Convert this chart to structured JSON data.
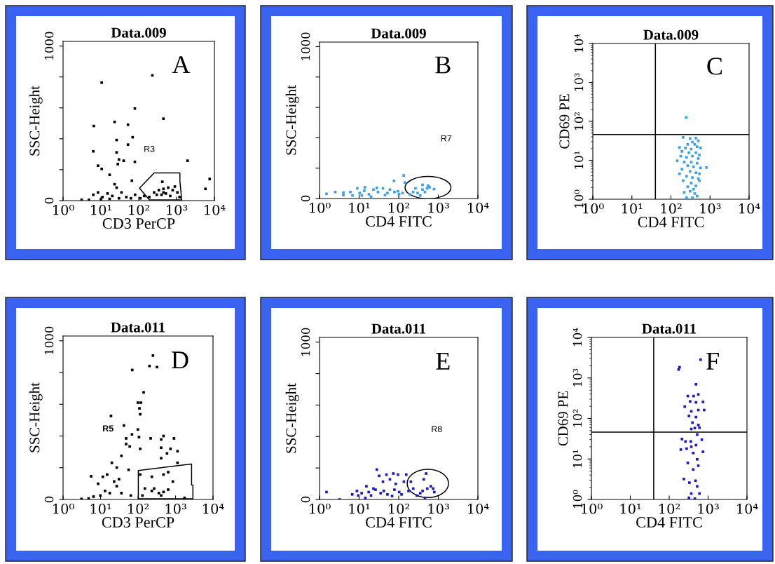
{
  "chart_data": [
    {
      "type": "scatter",
      "title": "Data.009",
      "xlabel": "CD3 PerCP",
      "ylabel": "SSC-Height",
      "log": "x",
      "marker": "square",
      "grid": false,
      "legend": false,
      "xlim": [
        1,
        10000
      ],
      "ylim": [
        0,
        1030
      ],
      "xticks": [
        {
          "value": 1,
          "label": "10⁰"
        },
        {
          "value": 10,
          "label": "10¹"
        },
        {
          "value": 100,
          "label": "10²"
        },
        {
          "value": 1000,
          "label": "10³"
        },
        {
          "value": 10000,
          "label": "10⁴"
        }
      ],
      "yticks": [
        0,
        {
          "value": 200,
          "label": null
        },
        {
          "value": 400,
          "label": null
        },
        {
          "value": 600,
          "label": null
        },
        {
          "value": 800,
          "label": null
        },
        1000
      ],
      "series": [
        {
          "color": "#000000",
          "x": [
            10.5,
            229,
            79,
            450,
            6.5,
            23,
            52,
            69,
            52,
            6.3,
            26,
            26,
            30,
            40,
            28,
            79,
            8.4,
            10.5,
            17,
            66,
            1950,
            7500,
            5800,
            420,
            23,
            26,
            6.3,
            8.4,
            11,
            15,
            20,
            35,
            47,
            10,
            17,
            30,
            62,
            110,
            190,
            3.1,
            4.8,
            80,
            140,
            255,
            340,
            450,
            600,
            790,
            1050,
            400,
            520,
            680,
            300,
            900,
            450,
            1200
          ],
          "values": [
            763,
            810,
            596,
            530,
            483,
            509,
            491,
            410,
            362,
            319,
            392,
            312,
            266,
            258,
            236,
            251,
            226,
            205,
            167,
            129,
            258,
            140,
            76,
            122,
            106,
            84,
            38,
            53,
            23,
            46,
            30,
            53,
            23,
            8,
            11,
            15,
            15,
            15,
            23,
            5,
            5,
            38,
            30,
            53,
            68,
            53,
            84,
            68,
            53,
            38,
            46,
            30,
            38,
            91,
            76,
            23
          ]
        }
      ],
      "annotations": [
        "A",
        "R3"
      ]
    },
    {
      "type": "scatter",
      "title": "Data.009",
      "xlabel": "CD4 FITC",
      "ylabel": "SSC-Height",
      "log": "x",
      "marker": "square",
      "grid": false,
      "legend": false,
      "xlim": [
        1,
        10000
      ],
      "ylim": [
        0,
        1030
      ],
      "xticks": [
        {
          "value": 1,
          "label": "10⁰"
        },
        {
          "value": 10,
          "label": "10¹"
        },
        {
          "value": 100,
          "label": "10²"
        },
        {
          "value": 1000,
          "label": "10³"
        },
        {
          "value": 10000,
          "label": "10⁴"
        }
      ],
      "yticks": [
        0,
        {
          "value": 200,
          "label": null
        },
        {
          "value": 400,
          "label": null
        },
        {
          "value": 600,
          "label": null
        },
        {
          "value": 800,
          "label": null
        },
        1000
      ],
      "series": [
        {
          "color": "#3aa0ee",
          "x": [
            1.5,
            2.5,
            4.0,
            6.0,
            9.0,
            10.3,
            13.5,
            17.7,
            23,
            30,
            40,
            52,
            60,
            78,
            102,
            76,
            134,
            143,
            190,
            232,
            300,
            400,
            520,
            600,
            780,
            460,
            350,
            265,
            6.8,
            20,
            11.7,
            45,
            96,
            4,
            14,
            28,
            125,
            400,
            550
          ],
          "values": [
            31,
            43,
            23,
            43,
            67,
            36,
            51,
            28,
            59,
            43,
            67,
            36,
            59,
            43,
            28,
            116,
            152,
            105,
            28,
            43,
            36,
            59,
            67,
            74,
            62,
            43,
            20,
            67,
            20,
            12,
            20,
            23,
            48,
            39,
            74,
            70,
            36,
            90,
            85
          ]
        }
      ],
      "annotations": [
        "B",
        "R7"
      ]
    },
    {
      "type": "scatter",
      "title": "Data.009",
      "xlabel": "CD4 FITC",
      "ylabel": "CD69 PE",
      "log": "xy",
      "marker": "square",
      "grid": false,
      "legend": false,
      "xlim": [
        1,
        10000
      ],
      "ylim": [
        1,
        10000
      ],
      "xticks": [
        {
          "value": 1,
          "label": "10⁰"
        },
        {
          "value": 10,
          "label": "10¹"
        },
        {
          "value": 100,
          "label": "10²"
        },
        {
          "value": 1000,
          "label": "10³"
        },
        {
          "value": 10000,
          "label": "10⁴"
        }
      ],
      "yticks": [
        {
          "value": 1,
          "label": "10⁰"
        },
        {
          "value": 10,
          "label": "10¹"
        },
        {
          "value": 100,
          "label": "10²"
        },
        {
          "value": 1000,
          "label": "10³"
        },
        {
          "value": 10000,
          "label": "10⁴"
        }
      ],
      "series": [
        {
          "color": "#3aa0ee",
          "x": [
            205,
            309,
            435,
            500,
            354,
            269,
            406,
            166,
            234,
            331,
            467,
            573,
            191,
            288,
            435,
            535,
            178,
            251,
            354,
            500,
            145,
            219,
            331,
            467,
            808,
            269,
            379,
            573,
            191,
            309,
            435,
            535,
            251,
            354,
            500,
            205,
            331,
            435,
            269,
            379,
            309,
            406,
            251,
            354,
            467,
            219,
            535,
            166,
            245
          ],
          "values": [
            38.8,
            36.2,
            37.2,
            31.5,
            29.4,
            25.6,
            25.6,
            21.3,
            20.8,
            19.4,
            22.3,
            20.8,
            16.9,
            15.7,
            15.7,
            13.7,
            12.8,
            11.9,
            12.8,
            11.1,
            9.7,
            9.0,
            9.0,
            8.4,
            6.5,
            7.3,
            6.8,
            6.4,
            5.9,
            5.2,
            4.8,
            4.5,
            3.9,
            3.6,
            3.4,
            3.0,
            2.6,
            2.2,
            2.1,
            1.8,
            1.6,
            1.4,
            1.1,
            1.1,
            1.2,
            1.5,
            3.0,
            4.5,
            126
          ]
        }
      ],
      "ref_lines": [
        {
          "axis": "x",
          "value": 40,
          "color": "#000000"
        },
        {
          "axis": "y",
          "value": 46,
          "color": "#000000"
        }
      ],
      "annotations": [
        "C"
      ]
    },
    {
      "type": "scatter",
      "title": "Data.011",
      "xlabel": "CD3 PerCP",
      "ylabel": "SSC-Height",
      "log": "x",
      "marker": "square",
      "grid": false,
      "legend": false,
      "xlim": [
        1,
        10000
      ],
      "ylim": [
        0,
        1030
      ],
      "xticks": [
        {
          "value": 1,
          "label": "10⁰"
        },
        {
          "value": 10,
          "label": "10¹"
        },
        {
          "value": 100,
          "label": "10²"
        },
        {
          "value": 1000,
          "label": "10³"
        },
        {
          "value": 10000,
          "label": "10⁴"
        }
      ],
      "yticks": [
        0,
        {
          "value": 200,
          "label": null
        },
        {
          "value": 400,
          "label": null
        },
        {
          "value": 600,
          "label": null
        },
        {
          "value": 800,
          "label": null
        },
        1000
      ],
      "series": [
        {
          "color": "#000000",
          "x": [
            250,
            202,
            320,
            70,
            141,
            99,
            119,
            109,
            114,
            19,
            42,
            99,
            69,
            106,
            48,
            217,
            414,
            478,
            912,
            48,
            60,
            114,
            414,
            735,
            1130,
            593,
            414,
            36,
            20,
            27,
            56,
            15,
            23,
            11.5,
            5.6,
            8.6,
            31,
            114,
            233,
            478,
            637,
            848,
            233,
            359,
            478,
            637,
            414,
            269,
            131,
            64,
            36,
            17.6,
            9.9,
            6.5,
            13.2,
            27,
            3.1,
            4.8,
            1130,
            152,
            1740
          ],
          "values": [
            907,
            841,
            834,
            816,
            675,
            610,
            610,
            574,
            537,
            526,
            466,
            441,
            410,
            393,
            385,
            385,
            378,
            400,
            385,
            349,
            334,
            319,
            326,
            319,
            304,
            290,
            260,
            275,
            231,
            201,
            187,
            157,
            113,
            143,
            146,
            99,
            128,
            157,
            143,
            157,
            172,
            113,
            54,
            40,
            47,
            62,
            25,
            69,
            25,
            25,
            40,
            40,
            25,
            18,
            54,
            84,
            3,
            6,
            231,
            69,
            10
          ]
        }
      ],
      "annotations": [
        "D",
        "R5"
      ]
    },
    {
      "type": "scatter",
      "title": "Data.011",
      "xlabel": "CD4 FITC",
      "ylabel": "SSC-Height",
      "log": "x",
      "marker": "square",
      "grid": false,
      "legend": false,
      "xlim": [
        1,
        10000
      ],
      "ylim": [
        0,
        1030
      ],
      "xticks": [
        {
          "value": 1,
          "label": "10⁰"
        },
        {
          "value": 10,
          "label": "10¹"
        },
        {
          "value": 100,
          "label": "10²"
        },
        {
          "value": 1000,
          "label": "10³"
        },
        {
          "value": 10000,
          "label": "10⁴"
        }
      ],
      "yticks": [
        0,
        {
          "value": 200,
          "label": null
        },
        {
          "value": 400,
          "label": null
        },
        {
          "value": 600,
          "label": null
        },
        {
          "value": 800,
          "label": null
        },
        1000
      ],
      "series": [
        {
          "color": "#1a1acc",
          "x": [
            1.5,
            3.2,
            6.7,
            8.8,
            11.6,
            15.3,
            20,
            26,
            28,
            32,
            40,
            49,
            52,
            60,
            73,
            84,
            96,
            103,
            135,
            155,
            177,
            203,
            233,
            286,
            350,
            401,
            492,
            430,
            527,
            647,
            741,
            793,
            460,
            9.5,
            17.5,
            35,
            68,
            118,
            14.3,
            23,
            42,
            78
          ],
          "values": [
            47,
            0,
            32,
            54,
            40,
            84,
            25,
            62,
            190,
            150,
            113,
            158,
            32,
            128,
            165,
            99,
            158,
            47,
            113,
            158,
            54,
            113,
            69,
            25,
            40,
            54,
            165,
            128,
            69,
            84,
            69,
            47,
            10,
            25,
            47,
            40,
            22,
            32,
            10,
            69,
            54,
            62
          ]
        }
      ],
      "annotations": [
        "E",
        "R8"
      ]
    },
    {
      "type": "scatter",
      "title": "Data.011",
      "xlabel": "CD4 FITC",
      "ylabel": "CD69 PE",
      "log": "xy",
      "marker": "square",
      "grid": false,
      "legend": false,
      "xlim": [
        1,
        10000
      ],
      "ylim": [
        1,
        10000
      ],
      "xticks": [
        {
          "value": 1,
          "label": "10⁰"
        },
        {
          "value": 10,
          "label": "10¹"
        },
        {
          "value": 100,
          "label": "10²"
        },
        {
          "value": 1000,
          "label": "10³"
        },
        {
          "value": 10000,
          "label": "10⁴"
        }
      ],
      "yticks": [
        {
          "value": 1,
          "label": "10⁰"
        },
        {
          "value": 10,
          "label": "10¹"
        },
        {
          "value": 100,
          "label": "10²"
        },
        {
          "value": 1000,
          "label": "10³"
        },
        {
          "value": 10000,
          "label": "10⁴"
        }
      ],
      "series": [
        {
          "color": "#1a1acc",
          "x": [
            644,
            185,
            175,
            488,
            301,
            425,
            561,
            345,
            488,
            740,
            251,
            370,
            561,
            793,
            322,
            488,
            397,
            370,
            456,
            601,
            524,
            213,
            262,
            360,
            370,
            488,
            690,
            199,
            281,
            414,
            740,
            301,
            524,
            414,
            561,
            238,
            331,
            475,
            524,
            370,
            601,
            322,
            456,
            561
          ],
          "values": [
            2820,
            1840,
            1610,
            695,
            357,
            357,
            392,
            263,
            249,
            256,
            196,
            150,
            161,
            161,
            115,
            108,
            79,
            55,
            58,
            59,
            40,
            31,
            27,
            27,
            20,
            22,
            30,
            17,
            18,
            14,
            15,
            8.0,
            9.8,
            5.5,
            6.8,
            3.2,
            2.6,
            2.9,
            2.1,
            1.4,
            1.4,
            1.1,
            1.05,
            69
          ]
        }
      ],
      "ref_lines": [
        {
          "axis": "x",
          "value": 40,
          "color": "#000000"
        },
        {
          "axis": "y",
          "value": 46,
          "color": "#000000"
        }
      ],
      "annotations": [
        "F"
      ]
    }
  ]
}
